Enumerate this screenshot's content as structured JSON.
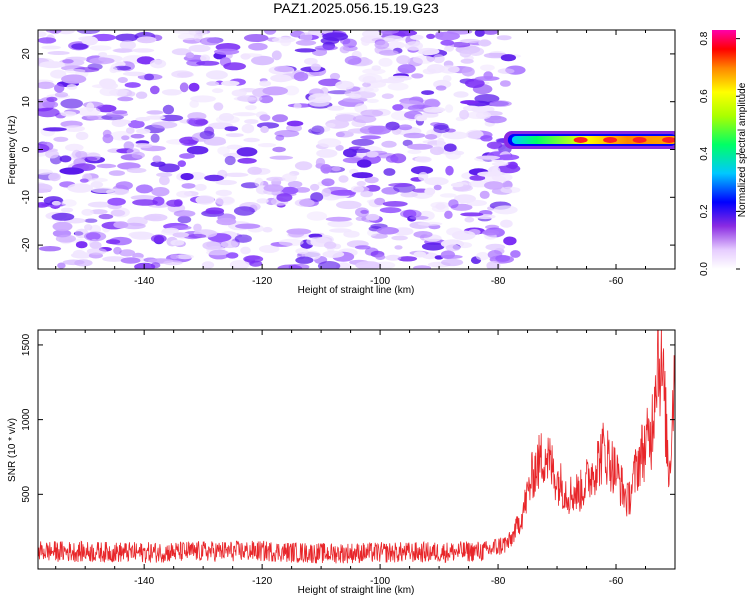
{
  "title": "PAZ1.2025.056.15.19.G23",
  "colors": {
    "series": "#e8262a",
    "frame": "#000000"
  },
  "chart_data": [
    {
      "type": "heatmap",
      "xlabel": "Height of straight line (km)",
      "ylabel": "Frequency (Hz)",
      "xlim": [
        -158,
        -50
      ],
      "ylim": [
        -25,
        25
      ],
      "xticks": [
        -140,
        -120,
        -100,
        -80,
        -60
      ],
      "yticks": [
        -20,
        -10,
        0,
        10,
        20
      ],
      "colorbar": {
        "label": "Normalized spectral amplitude",
        "range": [
          0.0,
          0.83
        ],
        "ticks": [
          "0.0",
          "0.2",
          "0.4",
          "0.6",
          "0.8"
        ],
        "colormap": "rainbow (violet-blue-cyan-green-yellow-red-magenta)"
      },
      "features": [
        {
          "description": "signal band",
          "x_range": [
            -78,
            -50
          ],
          "frequency": 2,
          "amplitude_range": [
            0.3,
            0.8
          ]
        },
        {
          "description": "noise speckle",
          "x_range": [
            -158,
            -77
          ],
          "frequency_range": [
            -25,
            25
          ],
          "amplitude_range": [
            0.0,
            0.15
          ]
        }
      ]
    },
    {
      "type": "line",
      "xlabel": "Height of straight line (km)",
      "ylabel": "SNR (10 * v/v)",
      "xlim": [
        -158,
        -50
      ],
      "ylim": [
        0,
        1600
      ],
      "xticks": [
        -140,
        -120,
        -100,
        -80,
        -60
      ],
      "yticks": [
        500,
        1000,
        1500
      ],
      "series": [
        {
          "x": [
            -158,
            -150,
            -140,
            -130,
            -120,
            -110,
            -100,
            -90,
            -82,
            -78,
            -76,
            -74,
            -72,
            -70,
            -68,
            -66,
            -64,
            -62,
            -60,
            -58,
            -56,
            -54,
            -53,
            -52,
            -51,
            -50
          ],
          "y": [
            120,
            115,
            110,
            118,
            120,
            105,
            110,
            112,
            120,
            180,
            350,
            650,
            780,
            600,
            500,
            520,
            650,
            800,
            650,
            450,
            750,
            900,
            1480,
            1250,
            620,
            1400
          ]
        }
      ]
    }
  ]
}
